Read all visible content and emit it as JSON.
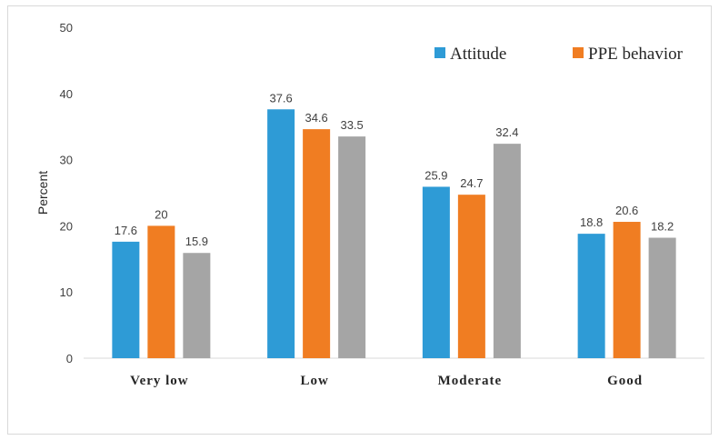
{
  "chart_data": {
    "type": "bar",
    "categories": [
      "Very low",
      "Low",
      "Moderate",
      "Good"
    ],
    "series": [
      {
        "name": "Attitude",
        "values": [
          17.6,
          37.6,
          25.9,
          18.8
        ],
        "color": "#2e9bd6"
      },
      {
        "name": "PPE behavior",
        "values": [
          20,
          34.6,
          24.7,
          20.6
        ],
        "color": "#f07d22"
      },
      {
        "values": [
          15.9,
          33.5,
          32.4,
          18.2
        ],
        "color": "#a5a5a5"
      }
    ],
    "data_labels": [
      [
        "17.6",
        "20",
        "15.9"
      ],
      [
        "37.6",
        "34.6",
        "33.5"
      ],
      [
        "25.9",
        "24.7",
        "32.4"
      ],
      [
        "18.8",
        "20.6",
        "18.2"
      ]
    ],
    "ylabel": "Percent",
    "ylim": [
      0,
      50
    ],
    "yticks": [
      0,
      10,
      20,
      30,
      40,
      50
    ],
    "grid": false,
    "legend_position": "top-right"
  }
}
